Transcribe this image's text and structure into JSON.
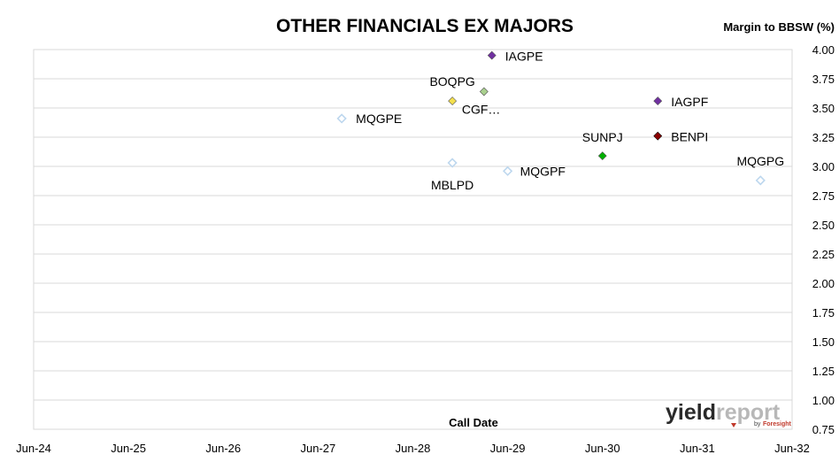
{
  "chart_data": {
    "type": "scatter",
    "title": "OTHER FINANCIALS EX MAJORS",
    "xlabel": "Call Date",
    "ylabel": "Margin to BBSW (%)",
    "x_tick_labels": [
      "Jun-24",
      "Jun-25",
      "Jun-26",
      "Jun-27",
      "Jun-28",
      "Jun-29",
      "Jun-30",
      "Jun-31",
      "Jun-32"
    ],
    "y_tick_labels": [
      "0.75",
      "1.00",
      "1.25",
      "1.50",
      "1.75",
      "2.00",
      "2.25",
      "2.50",
      "2.75",
      "3.00",
      "3.25",
      "3.50",
      "3.75",
      "4.00"
    ],
    "xlim": [
      "2024-06",
      "2032-06"
    ],
    "ylim": [
      0.75,
      4.0
    ],
    "grid": "horizontal",
    "points": [
      {
        "label": "MQGPE",
        "x": "2027-09",
        "y": 3.41,
        "color": "#bdd7ee",
        "filled": false
      },
      {
        "label": "BOQPG",
        "x": "2028-11",
        "y": 3.56,
        "color": "#f4e04d",
        "filled": true
      },
      {
        "label": "CGF…",
        "x": "2029-03",
        "y": 3.64,
        "color": "#a9d08e",
        "filled": true
      },
      {
        "label": "IAGPE",
        "x": "2029-04",
        "y": 3.95,
        "color": "#7030a0",
        "filled": true
      },
      {
        "label": "MBLPD",
        "x": "2028-11",
        "y": 3.03,
        "color": "#bdd7ee",
        "filled": false
      },
      {
        "label": "MQGPF",
        "x": "2029-06",
        "y": 2.96,
        "color": "#bdd7ee",
        "filled": false
      },
      {
        "label": "SUNPJ",
        "x": "2030-06",
        "y": 3.09,
        "color": "#00b000",
        "filled": true
      },
      {
        "label": "IAGPF",
        "x": "2031-01",
        "y": 3.56,
        "color": "#7030a0",
        "filled": true
      },
      {
        "label": "BENPI",
        "x": "2031-01",
        "y": 3.26,
        "color": "#8b0000",
        "filled": true
      },
      {
        "label": "MQGPG",
        "x": "2032-02",
        "y": 2.88,
        "color": "#bdd7ee",
        "filled": false
      }
    ]
  },
  "logo": {
    "part1": "yield",
    "part2": "report",
    "by": "by",
    "brand": "Foresight"
  }
}
